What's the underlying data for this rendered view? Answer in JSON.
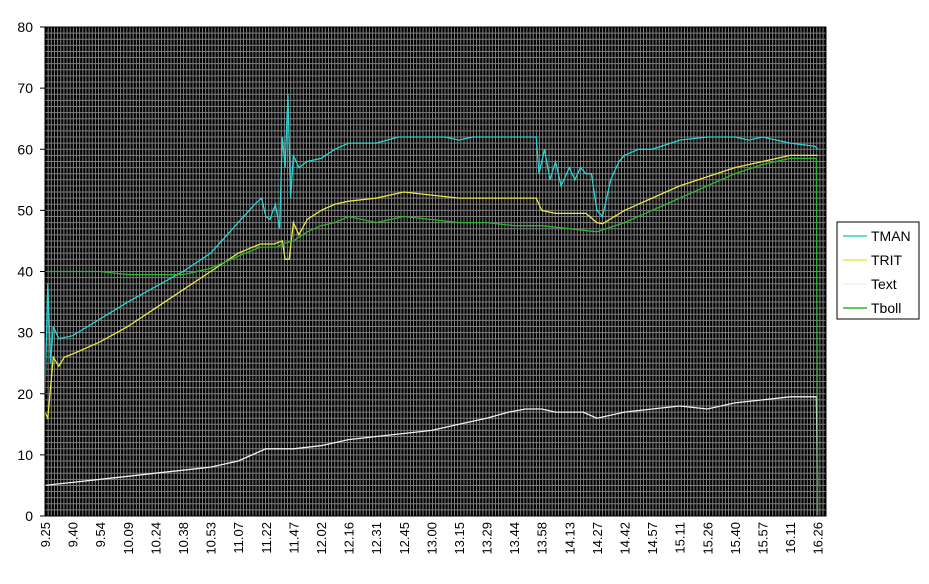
{
  "chart_data": {
    "type": "line",
    "title": "",
    "xlabel": "",
    "ylabel": "",
    "ylim": [
      0,
      80
    ],
    "yticks": [
      0,
      10,
      20,
      30,
      40,
      50,
      60,
      70,
      80
    ],
    "grid": true,
    "legend_position": "right",
    "x_tick_labels": [
      "9.25",
      "9.40",
      "9.54",
      "10.09",
      "10.24",
      "10.38",
      "10.53",
      "11.07",
      "11.22",
      "11.47",
      "12.02",
      "12.16",
      "12.31",
      "12.45",
      "13.00",
      "13.15",
      "13.29",
      "13.44",
      "13.58",
      "14.13",
      "14.27",
      "14.42",
      "14.57",
      "15.11",
      "15.26",
      "15.40",
      "15.57",
      "16.11",
      "16.26"
    ],
    "colors": {
      "plot_background": "#000000",
      "grid": "#808080",
      "TMAN": "#2ad4d4",
      "TRIT": "#e8e84a",
      "Text": "#f0f0f0",
      "Tboll": "#2fb52f"
    },
    "series": [
      {
        "name": "TMAN",
        "points": [
          [
            0,
            20
          ],
          [
            0.1,
            38
          ],
          [
            0.2,
            25
          ],
          [
            0.3,
            31
          ],
          [
            0.5,
            29
          ],
          [
            1,
            29.5
          ],
          [
            3,
            35
          ],
          [
            5,
            40
          ],
          [
            6,
            43
          ],
          [
            7,
            48
          ],
          [
            7.6,
            51
          ],
          [
            7.85,
            52
          ],
          [
            8,
            49
          ],
          [
            8.15,
            48.5
          ],
          [
            8.35,
            51
          ],
          [
            8.5,
            47
          ],
          [
            8.6,
            62
          ],
          [
            8.7,
            57
          ],
          [
            8.8,
            69
          ],
          [
            8.9,
            52
          ],
          [
            9.0,
            59
          ],
          [
            9.2,
            57
          ],
          [
            9.5,
            58
          ],
          [
            10,
            58.5
          ],
          [
            10.5,
            60
          ],
          [
            11,
            61
          ],
          [
            12,
            61
          ],
          [
            12.8,
            62
          ],
          [
            13,
            62
          ],
          [
            13.5,
            62
          ],
          [
            14,
            62
          ],
          [
            14.5,
            62
          ],
          [
            15,
            61.5
          ],
          [
            15.5,
            62
          ],
          [
            16,
            62
          ],
          [
            17,
            62
          ],
          [
            17.8,
            62
          ],
          [
            17.9,
            56
          ],
          [
            18.1,
            60
          ],
          [
            18.3,
            55
          ],
          [
            18.5,
            58
          ],
          [
            18.7,
            54
          ],
          [
            19,
            57
          ],
          [
            19.2,
            55
          ],
          [
            19.4,
            57
          ],
          [
            19.6,
            56
          ],
          [
            19.8,
            56
          ],
          [
            20,
            50
          ],
          [
            20.2,
            49
          ],
          [
            20.5,
            55
          ],
          [
            20.8,
            58
          ],
          [
            21,
            59
          ],
          [
            21.5,
            60
          ],
          [
            22,
            60
          ],
          [
            23,
            61.5
          ],
          [
            24,
            62
          ],
          [
            25,
            62
          ],
          [
            25.5,
            61.5
          ],
          [
            26,
            62
          ],
          [
            27,
            61
          ],
          [
            27.9,
            60.5
          ],
          [
            28,
            60
          ]
        ]
      },
      {
        "name": "TRIT",
        "points": [
          [
            0,
            17
          ],
          [
            0.1,
            16
          ],
          [
            0.3,
            26
          ],
          [
            0.5,
            24.5
          ],
          [
            0.7,
            26
          ],
          [
            1,
            26.5
          ],
          [
            2,
            28.5
          ],
          [
            3,
            31
          ],
          [
            4,
            34
          ],
          [
            5,
            37
          ],
          [
            6,
            40
          ],
          [
            7,
            43
          ],
          [
            7.8,
            44.5
          ],
          [
            8.3,
            44.5
          ],
          [
            8.6,
            45
          ],
          [
            8.7,
            42
          ],
          [
            8.85,
            42
          ],
          [
            9.0,
            48
          ],
          [
            9.2,
            46
          ],
          [
            9.5,
            48.5
          ],
          [
            10,
            50
          ],
          [
            10.5,
            51
          ],
          [
            11,
            51.5
          ],
          [
            12,
            52
          ],
          [
            13,
            53
          ],
          [
            14,
            52.5
          ],
          [
            15,
            52
          ],
          [
            16,
            52
          ],
          [
            17,
            52
          ],
          [
            17.8,
            52
          ],
          [
            18.0,
            50
          ],
          [
            18.5,
            49.5
          ],
          [
            19,
            49.5
          ],
          [
            19.6,
            49.5
          ],
          [
            20,
            48
          ],
          [
            20.2,
            47.8
          ],
          [
            21,
            50
          ],
          [
            22,
            52
          ],
          [
            23,
            54
          ],
          [
            24,
            55.5
          ],
          [
            25,
            57
          ],
          [
            26,
            58
          ],
          [
            27,
            59
          ],
          [
            27.9,
            59
          ],
          [
            28,
            59
          ]
        ]
      },
      {
        "name": "Text",
        "points": [
          [
            0,
            5
          ],
          [
            1,
            5.5
          ],
          [
            2,
            6
          ],
          [
            3,
            6.5
          ],
          [
            4,
            7
          ],
          [
            5,
            7.5
          ],
          [
            6,
            8
          ],
          [
            7,
            9
          ],
          [
            7.5,
            10
          ],
          [
            8,
            11
          ],
          [
            9,
            11
          ],
          [
            10,
            11.5
          ],
          [
            11,
            12.5
          ],
          [
            12,
            13
          ],
          [
            13,
            13.5
          ],
          [
            14,
            14
          ],
          [
            15,
            15
          ],
          [
            16,
            16
          ],
          [
            16.8,
            17
          ],
          [
            17.4,
            17.5
          ],
          [
            18,
            17.5
          ],
          [
            18.5,
            17
          ],
          [
            19,
            17
          ],
          [
            19.5,
            17
          ],
          [
            20,
            16
          ],
          [
            21,
            17
          ],
          [
            22,
            17.5
          ],
          [
            23,
            18
          ],
          [
            24,
            17.5
          ],
          [
            25,
            18.5
          ],
          [
            26,
            19
          ],
          [
            27,
            19.5
          ],
          [
            27.95,
            19.5
          ],
          [
            28,
            5
          ]
        ]
      },
      {
        "name": "Tboll",
        "points": [
          [
            0,
            40
          ],
          [
            1,
            40
          ],
          [
            2,
            40
          ],
          [
            3,
            39.5
          ],
          [
            4,
            39.5
          ],
          [
            5,
            39.5
          ],
          [
            6,
            40.5
          ],
          [
            7,
            42.5
          ],
          [
            7.8,
            44
          ],
          [
            8.4,
            44
          ],
          [
            8.6,
            44.5
          ],
          [
            9.0,
            45
          ],
          [
            9.5,
            46.5
          ],
          [
            10,
            47.5
          ],
          [
            10.5,
            48
          ],
          [
            11,
            49
          ],
          [
            12,
            48
          ],
          [
            13,
            49
          ],
          [
            14,
            48.5
          ],
          [
            15,
            48
          ],
          [
            16,
            48
          ],
          [
            17,
            47.5
          ],
          [
            18,
            47.5
          ],
          [
            19,
            47
          ],
          [
            20,
            46.5
          ],
          [
            21,
            48
          ],
          [
            22,
            50
          ],
          [
            23,
            52
          ],
          [
            24,
            54
          ],
          [
            25,
            56
          ],
          [
            26,
            57.5
          ],
          [
            27,
            58.5
          ],
          [
            27.95,
            58.5
          ],
          [
            28,
            0
          ]
        ]
      }
    ]
  }
}
